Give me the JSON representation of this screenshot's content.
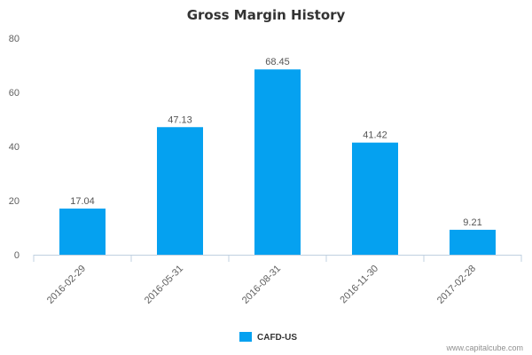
{
  "chart_data": {
    "type": "bar",
    "title": "Gross Margin History",
    "categories": [
      "2016-02-29",
      "2016-05-31",
      "2016-08-31",
      "2016-11-30",
      "2017-02-28"
    ],
    "series": [
      {
        "name": "CAFD-US",
        "values": [
          17.04,
          47.13,
          68.45,
          41.42,
          9.21
        ],
        "color": "#05a1f0"
      }
    ],
    "data_labels": [
      "17.04",
      "47.13",
      "68.45",
      "41.42",
      "9.21"
    ],
    "ylim": [
      0,
      80
    ],
    "yticks": [
      0,
      20,
      40,
      60,
      80
    ],
    "grid": false,
    "legend": "bottom-center",
    "xtick_rotation_deg": -45
  },
  "credit": "www.capitalcube.com"
}
